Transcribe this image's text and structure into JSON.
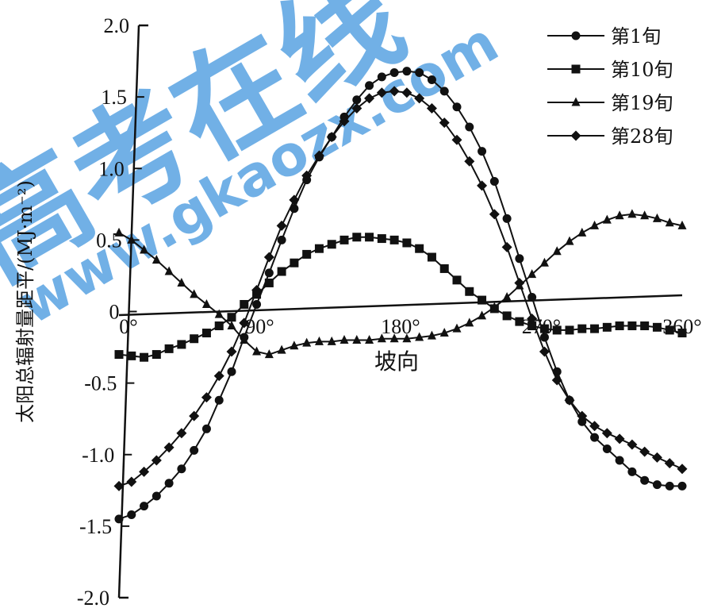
{
  "watermark": {
    "text": "高考在线",
    "url": "www.gkaozx.com",
    "color": "#4a9be0"
  },
  "chart_data": {
    "type": "line",
    "xlabel": "坡向",
    "ylabel": "太阳总辐射量距平/(MJ·m⁻²)",
    "xlim": [
      0,
      360
    ],
    "ylim": [
      -2.0,
      2.0
    ],
    "y_ticks": [
      "2.0",
      "1.5",
      "1.0",
      "0.5",
      "0",
      "-0.5",
      "-1.0",
      "-1.5",
      "-2.0"
    ],
    "x_ticks": [
      "0°",
      "90°",
      "180°",
      "270°",
      "360°"
    ],
    "legend_position": "top-right",
    "grid": false,
    "x_step": 8,
    "series": [
      {
        "name": "第1旬",
        "marker": "circle",
        "values": [
          -1.45,
          -1.42,
          -1.36,
          -1.29,
          -1.2,
          -1.1,
          -0.97,
          -0.82,
          -0.62,
          -0.42,
          -0.18,
          0.05,
          0.27,
          0.5,
          0.72,
          0.92,
          1.08,
          1.22,
          1.36,
          1.48,
          1.58,
          1.64,
          1.67,
          1.68,
          1.67,
          1.62,
          1.54,
          1.43,
          1.29,
          1.12,
          0.91,
          0.65,
          0.37,
          0.1,
          -0.18,
          -0.42,
          -0.62,
          -0.77,
          -0.88,
          -0.96,
          -1.04,
          -1.12,
          -1.18,
          -1.21,
          -1.22,
          -1.22
        ]
      },
      {
        "name": "第10旬",
        "marker": "square",
        "values": [
          -0.3,
          -0.31,
          -0.32,
          -0.3,
          -0.26,
          -0.23,
          -0.19,
          -0.15,
          -0.1,
          -0.04,
          0.05,
          0.12,
          0.2,
          0.28,
          0.34,
          0.4,
          0.44,
          0.47,
          0.5,
          0.52,
          0.52,
          0.51,
          0.5,
          0.48,
          0.44,
          0.38,
          0.3,
          0.22,
          0.14,
          0.08,
          0.02,
          -0.03,
          -0.07,
          -0.1,
          -0.12,
          -0.13,
          -0.13,
          -0.12,
          -0.12,
          -0.11,
          -0.1,
          -0.1,
          -0.1,
          -0.11,
          -0.13,
          -0.15
        ]
      },
      {
        "name": "第19旬",
        "marker": "triangle",
        "values": [
          0.55,
          0.5,
          0.43,
          0.36,
          0.28,
          0.2,
          0.12,
          0.05,
          -0.02,
          -0.1,
          -0.2,
          -0.28,
          -0.3,
          -0.27,
          -0.24,
          -0.22,
          -0.21,
          -0.21,
          -0.2,
          -0.2,
          -0.2,
          -0.19,
          -0.19,
          -0.19,
          -0.18,
          -0.17,
          -0.15,
          -0.12,
          -0.08,
          -0.03,
          0.03,
          0.1,
          0.18,
          0.26,
          0.34,
          0.42,
          0.49,
          0.55,
          0.6,
          0.64,
          0.67,
          0.68,
          0.67,
          0.65,
          0.62,
          0.6
        ]
      },
      {
        "name": "第28旬",
        "marker": "diamond",
        "values": [
          -1.22,
          -1.19,
          -1.12,
          -1.04,
          -0.95,
          -0.85,
          -0.73,
          -0.6,
          -0.45,
          -0.28,
          -0.08,
          0.15,
          0.38,
          0.6,
          0.78,
          0.95,
          1.09,
          1.22,
          1.33,
          1.42,
          1.49,
          1.53,
          1.54,
          1.53,
          1.49,
          1.42,
          1.32,
          1.2,
          1.05,
          0.88,
          0.68,
          0.45,
          0.2,
          -0.05,
          -0.28,
          -0.48,
          -0.62,
          -0.73,
          -0.8,
          -0.85,
          -0.89,
          -0.93,
          -0.98,
          -1.02,
          -1.06,
          -1.1
        ]
      }
    ]
  }
}
